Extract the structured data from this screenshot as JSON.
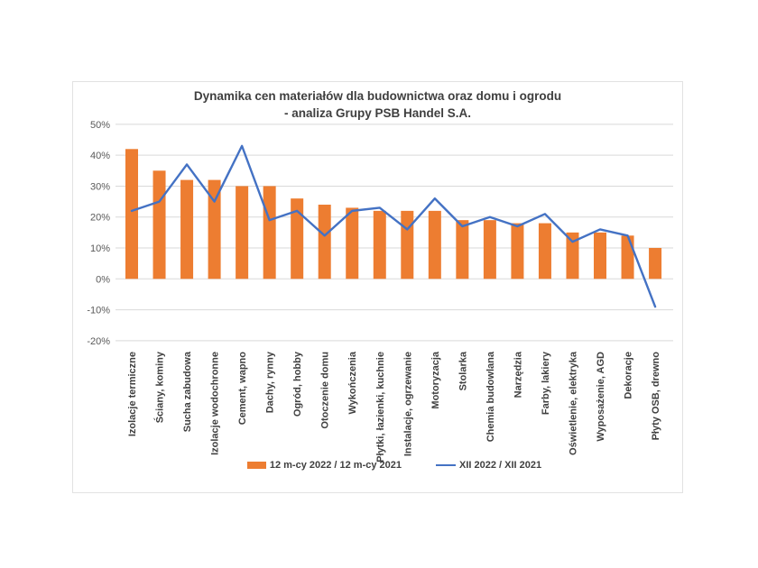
{
  "page": {
    "background": "#ffffff"
  },
  "chart_data": {
    "type": "bar+line combo",
    "title_line1": "Dynamika cen materiałów dla budownictwa oraz domu i ogrodu",
    "title_line2": "- analiza Grupy PSB Handel S.A.",
    "categories": [
      "Izolacje termiczne",
      "Ściany, kominy",
      "Sucha zabudowa",
      "Izolacje wodochronne",
      "Cement, wapno",
      "Dachy, rynny",
      "Ogród, hobby",
      "Otoczenie domu",
      "Wykończenia",
      "Płytki, łazienki, kuchnie",
      "Instalacje, ogrzewanie",
      "Motoryzacja",
      "Stolarka",
      "Chemia budowlana",
      "Narzędzia",
      "Farby, lakiery",
      "Oświetlenie, elektryka",
      "Wyposażenie, AGD",
      "Dekoracje",
      "Płyty OSB, drewno"
    ],
    "series": [
      {
        "name": "12 m-cy 2022 / 12 m-cy 2021",
        "type": "bar",
        "color": "#ED7D31",
        "values": [
          42,
          35,
          32,
          32,
          30,
          30,
          26,
          24,
          23,
          22,
          22,
          22,
          19,
          19,
          18,
          18,
          15,
          15,
          14,
          10
        ]
      },
      {
        "name": "XII 2022 / XII 2021",
        "type": "line",
        "color": "#4472C4",
        "values": [
          22,
          25,
          37,
          25,
          43,
          19,
          22,
          14,
          22,
          23,
          16,
          26,
          17,
          20,
          17,
          21,
          12,
          16,
          14,
          -9
        ]
      }
    ],
    "y_axis": {
      "min": -20,
      "max": 50,
      "step": 10,
      "unit": "%",
      "tick_labels": [
        "50%",
        "40%",
        "30%",
        "20%",
        "10%",
        "0%",
        "-10%",
        "-20%"
      ]
    },
    "grid": true,
    "gridline_color": "#d9d9d9",
    "legend_position": "bottom"
  }
}
